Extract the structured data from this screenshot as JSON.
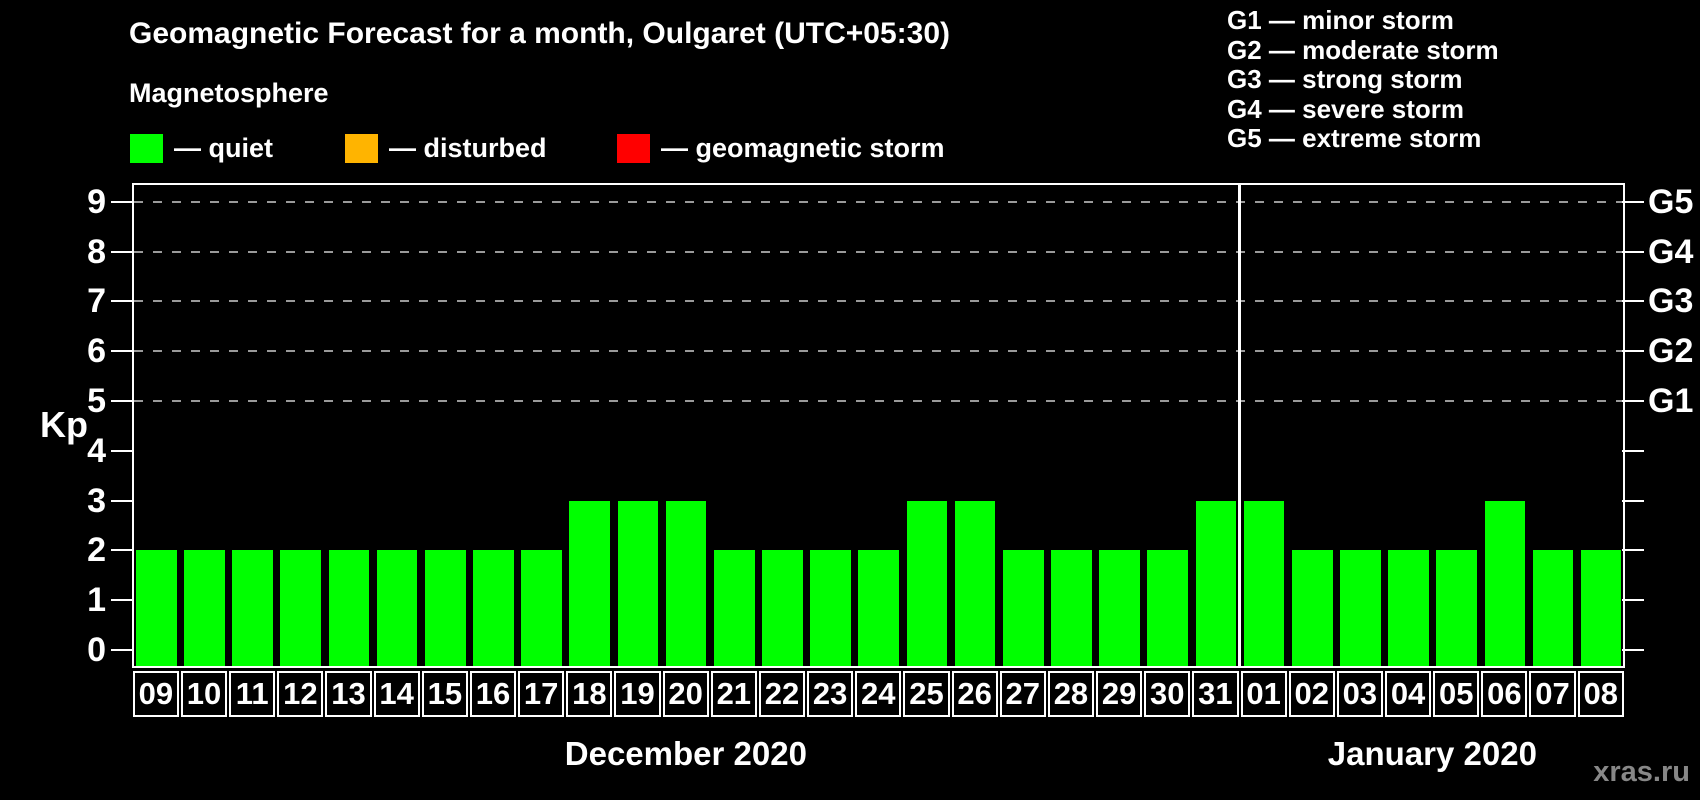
{
  "title": "Geomagnetic Forecast for a month, Oulgaret (UTC+05:30)",
  "subtitle": "Magnetosphere",
  "status_legend": [
    {
      "key": "quiet",
      "label": "— quiet",
      "color": "#00ff00"
    },
    {
      "key": "disturbed",
      "label": "— disturbed",
      "color": "#ffb400"
    },
    {
      "key": "storm",
      "label": "— geomagnetic storm",
      "color": "#ff0000"
    }
  ],
  "g_legend": [
    "G1 — minor storm",
    "G2 — moderate storm",
    "G3 — strong storm",
    "G4 — severe storm",
    "G5 — extreme storm"
  ],
  "watermark": "xras.ru",
  "chart_data": {
    "type": "bar",
    "title": "Geomagnetic Forecast for a month, Oulgaret (UTC+05:30)",
    "ylabel": "Kp",
    "ylim": [
      0,
      9
    ],
    "yticks": [
      0,
      1,
      2,
      3,
      4,
      5,
      6,
      7,
      8,
      9
    ],
    "right_axis_labels": {
      "5": "G1",
      "6": "G2",
      "7": "G3",
      "8": "G4",
      "9": "G5"
    },
    "grid": "dashed horizontal lines at Kp 5 to 9",
    "bar_color": "#00ff00",
    "categories": [
      "09",
      "10",
      "11",
      "12",
      "13",
      "14",
      "15",
      "16",
      "17",
      "18",
      "19",
      "20",
      "21",
      "22",
      "23",
      "24",
      "25",
      "26",
      "27",
      "28",
      "29",
      "30",
      "31",
      "01",
      "02",
      "03",
      "04",
      "05",
      "06",
      "07",
      "08"
    ],
    "values": [
      2,
      2,
      2,
      2,
      2,
      2,
      2,
      2,
      2,
      3,
      3,
      3,
      2,
      2,
      2,
      2,
      3,
      3,
      2,
      2,
      2,
      2,
      3,
      3,
      2,
      2,
      2,
      2,
      3,
      2,
      2
    ],
    "months": [
      {
        "label": "December 2020",
        "day_count": 23
      },
      {
        "label": "January 2020",
        "day_count": 8
      }
    ]
  }
}
